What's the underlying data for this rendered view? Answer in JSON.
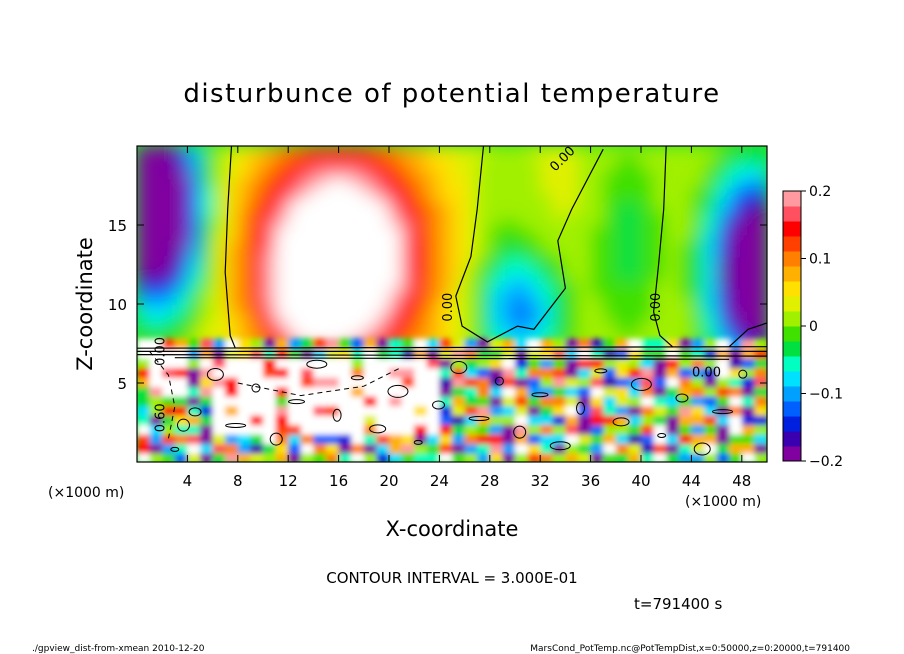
{
  "chart_data": {
    "type": "heatmap",
    "title": "disturbunce of potential temperature",
    "xlabel": "X-coordinate",
    "ylabel": "Z-coordinate",
    "x_unit_label": "(×1000 m)",
    "z_unit_label": "(×1000 m)",
    "xlim": [
      0,
      50
    ],
    "ylim": [
      0,
      20
    ],
    "x_ticks": [
      4,
      8,
      12,
      16,
      20,
      24,
      28,
      32,
      36,
      40,
      44,
      48
    ],
    "y_ticks": [
      5,
      10,
      15
    ],
    "colorbar": {
      "range": [
        -0.2,
        0.2
      ],
      "ticks": [
        {
          "value": 0.2,
          "label": "0.2"
        },
        {
          "value": 0.1,
          "label": "0.1"
        },
        {
          "value": 0,
          "label": "0"
        },
        {
          "value": -0.1,
          "label": "−0.1"
        },
        {
          "value": -0.2,
          "label": "−0.2"
        }
      ],
      "colors": [
        "#8000a0",
        "#3a00b0",
        "#0020e0",
        "#0060ff",
        "#00a0ff",
        "#00e0ff",
        "#00ffc0",
        "#00e040",
        "#40e000",
        "#a0f000",
        "#e0f000",
        "#ffe000",
        "#ffb000",
        "#ff8000",
        "#ff4000",
        "#ff0000",
        "#ff5060",
        "#ff9aa0"
      ]
    },
    "contour_labels": [
      {
        "text": "0.00",
        "x": 34,
        "z": 19.0
      },
      {
        "text": "0.00",
        "x": 25.0,
        "z": 9.8
      },
      {
        "text": "0.00",
        "x": 41.5,
        "z": 9.8
      },
      {
        "text": "0.00",
        "x": 2.2,
        "z": 7.0
      },
      {
        "text": "0.00",
        "x": 45.2,
        "z": 5.4
      },
      {
        "text": "0.60",
        "x": 2.2,
        "z": 2.8
      }
    ],
    "contour_interval_text": "CONTOUR INTERVAL = 3.000E-01",
    "time_text": "t=791400 s",
    "footer_left": "./gpview_dist-from-xmean  2010-12-20",
    "footer_right": "MarsCond_PotTemp.nc@PotTempDist,x=0:50000,z=0:20000,t=791400"
  }
}
